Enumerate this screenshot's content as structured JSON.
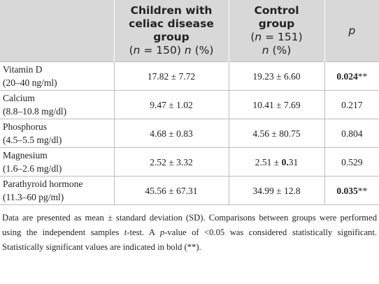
{
  "table": {
    "header": [
      [
        "Children with",
        "celiac disease",
        "group",
        "(",
        "n",
        " = 150) ",
        "n",
        " (%)"
      ],
      [
        "Control",
        "group",
        "(",
        "n",
        " = 151)",
        "n",
        " (%)"
      ],
      [
        "p"
      ]
    ],
    "rows": [
      [
        [
          "Vitamin D",
          "(20–40 ng/ml)"
        ],
        [
          "17.82 ± 7.72"
        ],
        [
          "19.23 ± 6.60"
        ],
        [
          "0.024",
          "**"
        ]
      ],
      [
        [
          "Calcium",
          "(8.8–10.8 mg/dl)"
        ],
        [
          "9.47 ± 1.02"
        ],
        [
          "10.41 ± 7.69"
        ],
        [
          "0.217"
        ]
      ],
      [
        [
          "Phosphorus",
          "(4.5–5.5 mg/dl)"
        ],
        [
          "4.68 ± 0.83"
        ],
        [
          "4.56 ± 80.75"
        ],
        [
          "0.804"
        ]
      ],
      [
        [
          "Magnesium",
          "(1.6–2.6 mg/dl)"
        ],
        [
          "2.52 ± 3.32"
        ],
        [
          "2.51 ± ",
          "0.",
          "31"
        ],
        [
          "0.529"
        ]
      ],
      [
        [
          "Parathyroid hormone",
          "(11.3–60 pg/ml)"
        ],
        [
          "45.56 ± 67.31"
        ],
        [
          "34.99 ± 12.8"
        ],
        [
          "0.035",
          "**"
        ]
      ]
    ],
    "footnote": [
      "Data are presented as mean ± standard deviation (SD). Comparisons between groups were performed using the independent samples ",
      "t",
      "-test. A ",
      "p",
      "-value of <0.05 was considered statistically significant. Statistically significant values are indicated in bold (**)."
    ]
  }
}
